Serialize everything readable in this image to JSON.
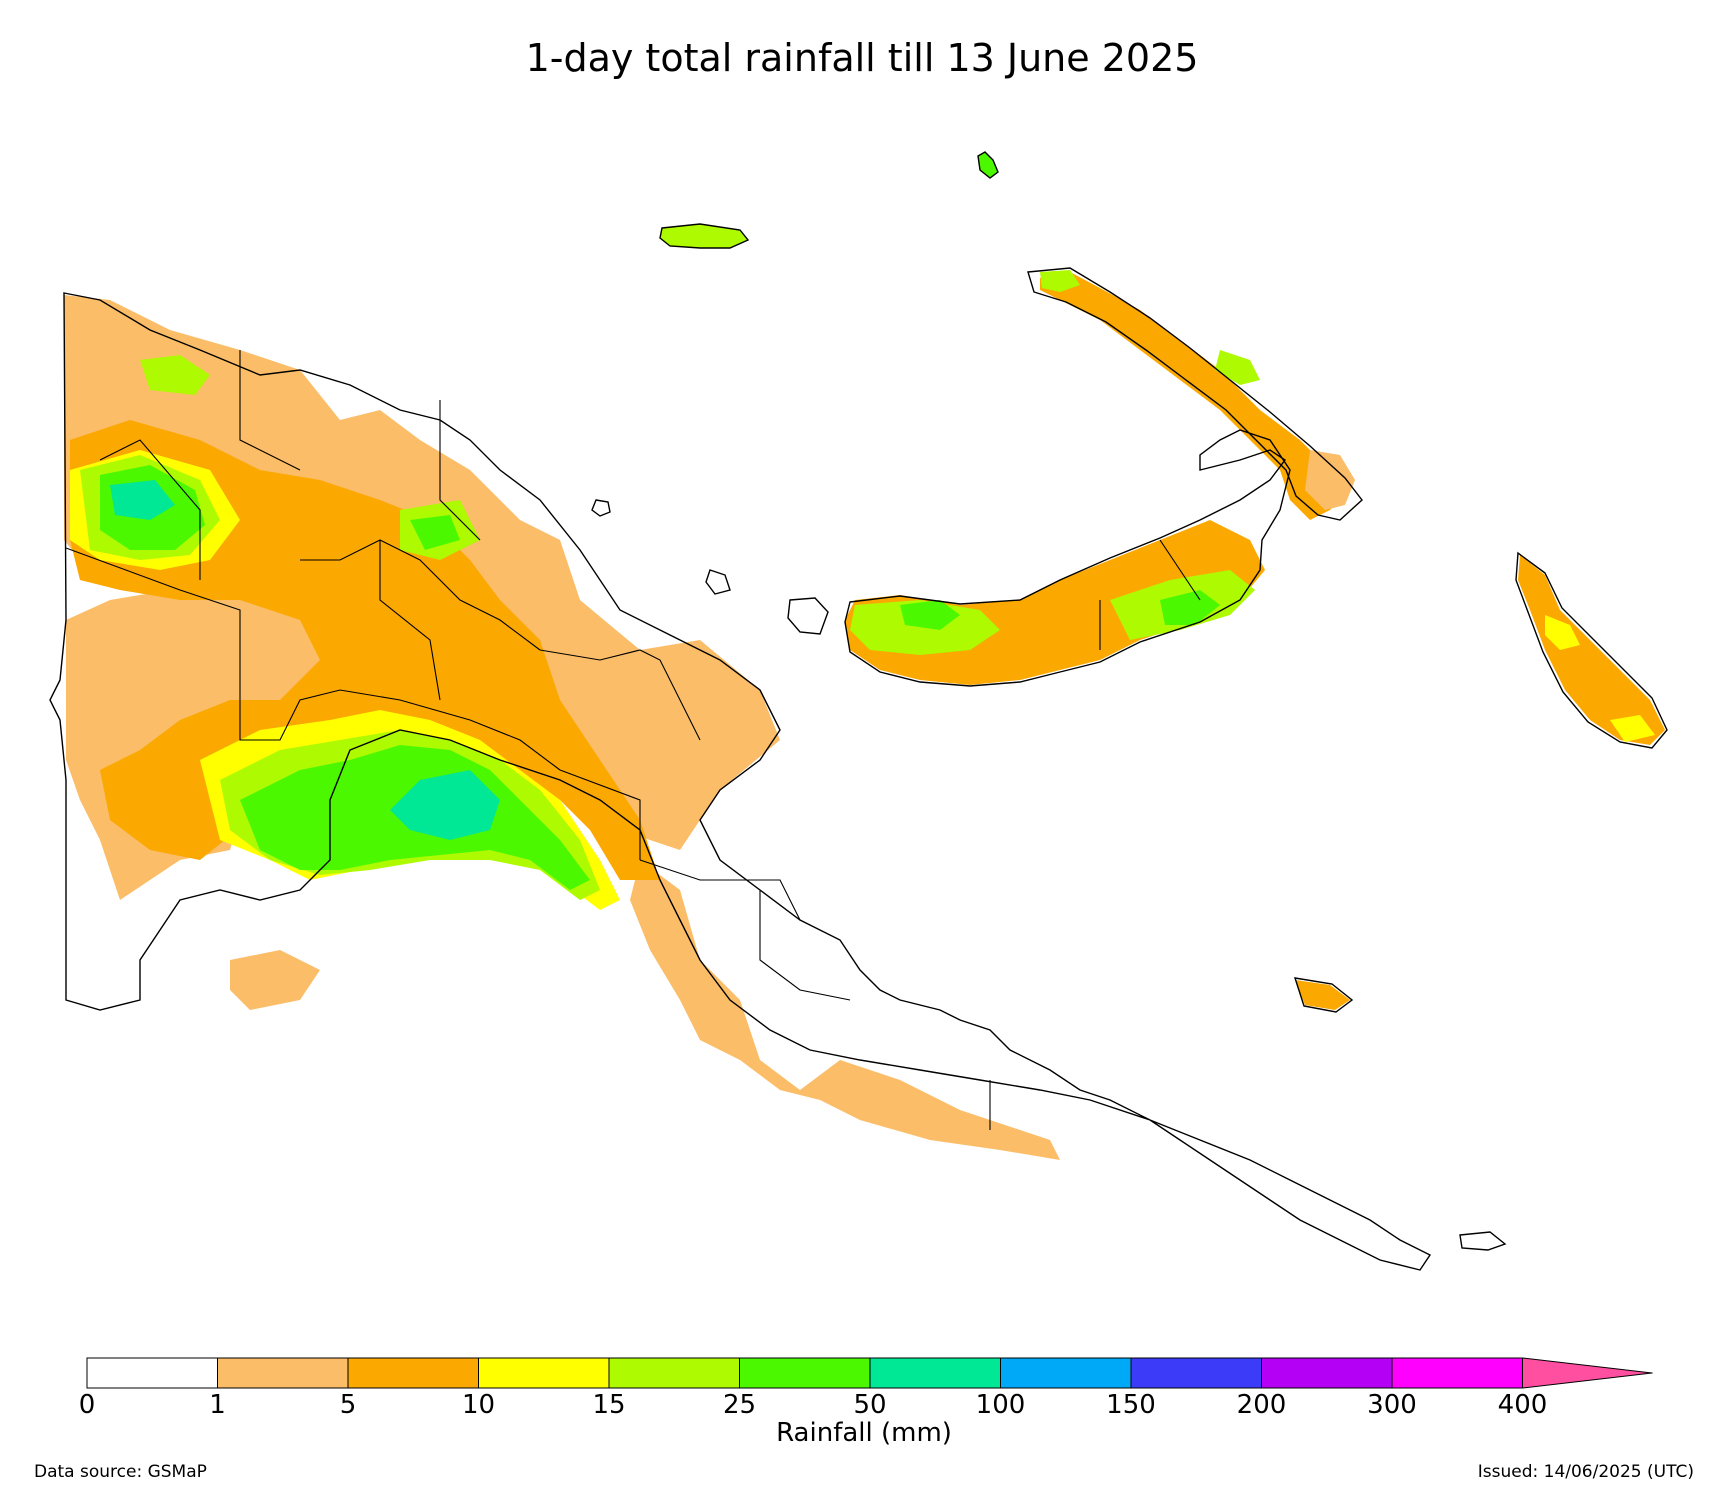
{
  "title": "1-day total rainfall till 13 June 2025",
  "colorbar": {
    "label": "Rainfall (mm)",
    "ticks": [
      "0",
      "1",
      "5",
      "10",
      "15",
      "25",
      "50",
      "100",
      "150",
      "200",
      "300",
      "400"
    ],
    "colors": [
      "#ffffff",
      "#fbbd68",
      "#fba800",
      "#ffff00",
      "#aefa00",
      "#4cf800",
      "#00e896",
      "#00a8f8",
      "#3c3cf8",
      "#b400f4",
      "#ff00ff"
    ],
    "extend_color": "#ff4fa0"
  },
  "footer": {
    "source": "Data source: GSMaP",
    "issued": "Issued: 14/06/2025 (UTC)"
  }
}
